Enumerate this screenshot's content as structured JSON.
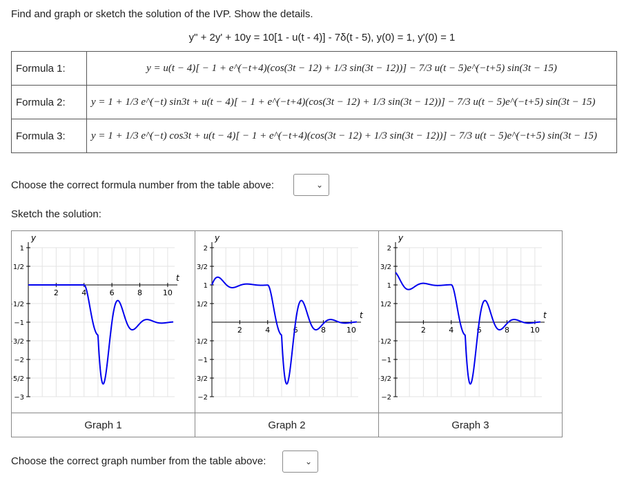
{
  "question": {
    "prompt": "Find and graph or sketch the solution of the IVP. Show the details.",
    "ivp": "y\" + 2y' + 10y = 10[1 - u(t - 4)] - 7δ(t - 5), y(0) = 1, y'(0) = 1"
  },
  "formulas": [
    {
      "label": "Formula 1:",
      "expr": "y = u(t − 4)[ − 1 + e^(−t+4)(cos(3t − 12) + 1/3 sin(3t − 12))] − 7/3 u(t − 5)e^(−t+5) sin(3t − 15)"
    },
    {
      "label": "Formula 2:",
      "expr": "y = 1 + 1/3 e^(−t) sin3t + u(t − 4)[ − 1 + e^(−t+4)(cos(3t − 12) + 1/3 sin(3t − 12))] − 7/3 u(t − 5)e^(−t+5) sin(3t − 15)"
    },
    {
      "label": "Formula 3:",
      "expr": "y = 1 + 1/3 e^(−t) cos3t + u(t − 4)[ − 1 + e^(−t+4)(cos(3t − 12) + 1/3 sin(3t − 12))] − 7/3 u(t − 5)e^(−t+5) sin(3t − 15)"
    }
  ],
  "formula_question": "Choose the correct formula number from the table above:",
  "formula_select": {
    "selected": ""
  },
  "sketch_label": "Sketch the solution:",
  "graph_question": "Choose the correct graph number from the table above:",
  "graph_select": {
    "selected": ""
  },
  "curve_color": "#0000ee",
  "axis_symbols": {
    "x": "t",
    "y": "y"
  },
  "graphs": [
    {
      "label": "Graph 1",
      "x_ticks": [
        "2",
        "4",
        "6",
        "8",
        "10"
      ],
      "y_ticks": [
        "1",
        "1/2",
        "−1/2",
        "−1",
        "−3/2",
        "−2",
        "−5/2",
        "−3"
      ]
    },
    {
      "label": "Graph 2",
      "x_ticks": [
        "2",
        "4",
        "6",
        "8",
        "10"
      ],
      "y_ticks": [
        "2",
        "3/2",
        "1",
        "1/2",
        "−1/2",
        "−1",
        "−3/2",
        "−2"
      ]
    },
    {
      "label": "Graph 3",
      "x_ticks": [
        "2",
        "4",
        "6",
        "8",
        "10"
      ],
      "y_ticks": [
        "2",
        "3/2",
        "1",
        "1/2",
        "−1/2",
        "−1",
        "−3/2",
        "−2"
      ]
    }
  ]
}
